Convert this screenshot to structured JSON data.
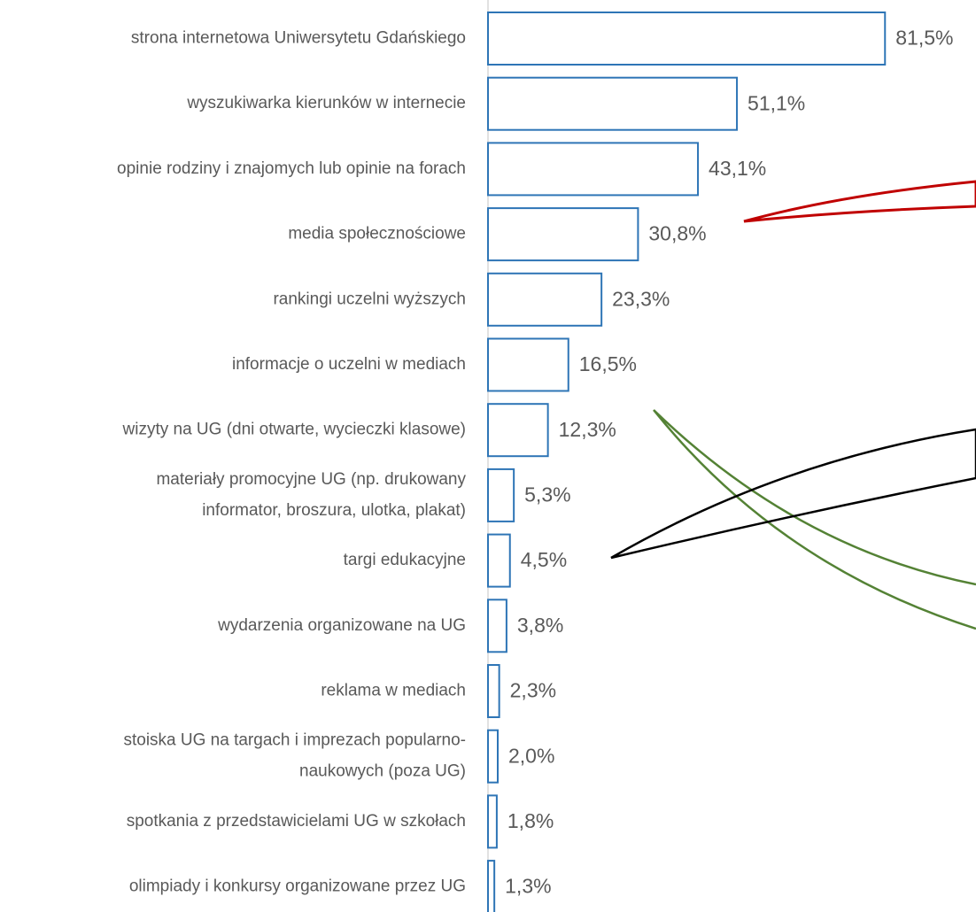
{
  "chart_data": {
    "type": "barh",
    "categories": [
      "strona internetowa Uniwersytetu Gdańskiego",
      "wyszukiwarka kierunków w internecie",
      "opinie rodziny i znajomych lub opinie na forach",
      "media społecznościowe",
      "rankingi uczelni wyższych",
      "informacje o uczelni w mediach",
      "wizyty na UG (dni otwarte, wycieczki klasowe)",
      "materiały promocyjne UG (np. drukowany\ninformator, broszura, ulotka, plakat)",
      "targi edukacyjne",
      "wydarzenia organizowane na UG",
      "reklama w mediach",
      "stoiska UG na targach i imprezach popularno-\nnaukowych  (poza UG)",
      "spotkania z przedstawicielami UG w szkołach",
      "olimpiady i konkursy organizowane przez UG"
    ],
    "values": [
      81.5,
      51.1,
      43.1,
      30.8,
      23.3,
      16.5,
      12.3,
      5.3,
      4.5,
      3.8,
      2.3,
      2.0,
      1.8,
      1.3
    ],
    "value_labels": [
      "81,5%",
      "51,1%",
      "43,1%",
      "30,8%",
      "23,3%",
      "16,5%",
      "12,3%",
      "5,3%",
      "4,5%",
      "3,8%",
      "2,3%",
      "2,0%",
      "1,8%",
      "1,3%"
    ],
    "color": "#2e75b6",
    "xlim": [
      0,
      100
    ]
  }
}
